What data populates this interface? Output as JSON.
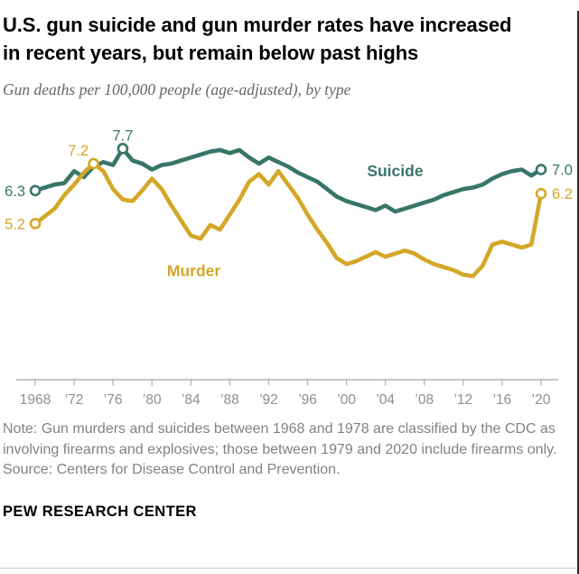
{
  "header": {
    "title_line1": "U.S. gun suicide and gun murder rates have increased",
    "title_line2": "in recent years, but remain below past highs",
    "subtitle": "Gun deaths per 100,000 people (age-adjusted), by type"
  },
  "chart_data": {
    "type": "line",
    "title": "U.S. gun suicide and gun murder rates, 1968-2020",
    "ylabel": "Gun deaths per 100,000 people (age-adjusted)",
    "x_start_year": 1968,
    "x_end_year": 2020,
    "ylim": [
      0,
      8.6
    ],
    "grid": false,
    "x_ticks": {
      "years": [
        1968,
        1972,
        1976,
        1980,
        1984,
        1988,
        1992,
        1996,
        2000,
        2004,
        2008,
        2012,
        2016,
        2020
      ],
      "labels": [
        "1968",
        "’72",
        "’76",
        "’80",
        "’84",
        "’88",
        "’92",
        "’96",
        "’00",
        "’04",
        "’08",
        "’12",
        "’16",
        "’20"
      ]
    },
    "series": [
      {
        "name": "Suicide",
        "color": "#377668",
        "values": [
          6.3,
          6.4,
          6.5,
          6.55,
          6.95,
          6.75,
          7.1,
          7.25,
          7.15,
          7.7,
          7.3,
          7.2,
          7.0,
          7.15,
          7.2,
          7.3,
          7.4,
          7.5,
          7.6,
          7.65,
          7.55,
          7.65,
          7.4,
          7.2,
          7.4,
          7.25,
          7.1,
          6.9,
          6.75,
          6.6,
          6.35,
          6.1,
          5.95,
          5.85,
          5.75,
          5.65,
          5.8,
          5.6,
          5.7,
          5.8,
          5.9,
          6.0,
          6.15,
          6.25,
          6.35,
          6.4,
          6.5,
          6.7,
          6.85,
          6.95,
          7.0,
          6.8,
          7.0
        ]
      },
      {
        "name": "Murder",
        "color": "#D5A728",
        "values": [
          5.2,
          5.45,
          5.7,
          6.15,
          6.5,
          6.9,
          7.2,
          6.95,
          6.35,
          6.0,
          5.95,
          6.3,
          6.7,
          6.35,
          5.8,
          5.3,
          4.8,
          4.7,
          5.15,
          5.0,
          5.5,
          6.0,
          6.6,
          6.85,
          6.5,
          6.95,
          6.5,
          6.05,
          5.5,
          5.0,
          4.55,
          4.05,
          3.85,
          3.95,
          4.1,
          4.25,
          4.1,
          4.2,
          4.3,
          4.2,
          4.0,
          3.85,
          3.75,
          3.65,
          3.5,
          3.45,
          3.8,
          4.5,
          4.6,
          4.5,
          4.4,
          4.5,
          6.2
        ]
      }
    ],
    "callouts": [
      {
        "series": "Suicide",
        "year": 1968,
        "value": 6.3,
        "label": "6.3",
        "align": "left"
      },
      {
        "series": "Murder",
        "year": 1968,
        "value": 5.2,
        "label": "5.2",
        "align": "left"
      },
      {
        "series": "Murder",
        "year": 1974,
        "value": 7.2,
        "label": "7.2",
        "align": "above",
        "shift_x": -17
      },
      {
        "series": "Suicide",
        "year": 1977,
        "value": 7.7,
        "label": "7.7",
        "align": "above"
      },
      {
        "series": "Suicide",
        "year": 2020,
        "value": 7.0,
        "label": "7.0",
        "align": "right"
      },
      {
        "series": "Murder",
        "year": 2020,
        "value": 6.2,
        "label": "6.2",
        "align": "right"
      }
    ],
    "series_labels": [
      {
        "text": "Suicide",
        "color": "#377668",
        "x_year": 2005.0,
        "y_value": 6.78
      },
      {
        "text": "Murder",
        "color": "#D5A728",
        "x_year": 1984.3,
        "y_value": 3.45
      }
    ],
    "legend_position": "inline-labels"
  },
  "footer": {
    "note": "Note: Gun murders and suicides between 1968 and 1978 are classified by the CDC as involving firearms and explosives; those between 1979 and 2020 include firearms only.",
    "source": "Source: Centers for Disease Control and Prevention.",
    "brand": "PEW RESEARCH CENTER"
  },
  "colors": {
    "suicide": "#377668",
    "murder": "#D5A728",
    "axis": "#b4b4b4",
    "tick_label": "#8f8f8f",
    "note_text": "#828282",
    "subtitle_text": "#666666"
  }
}
